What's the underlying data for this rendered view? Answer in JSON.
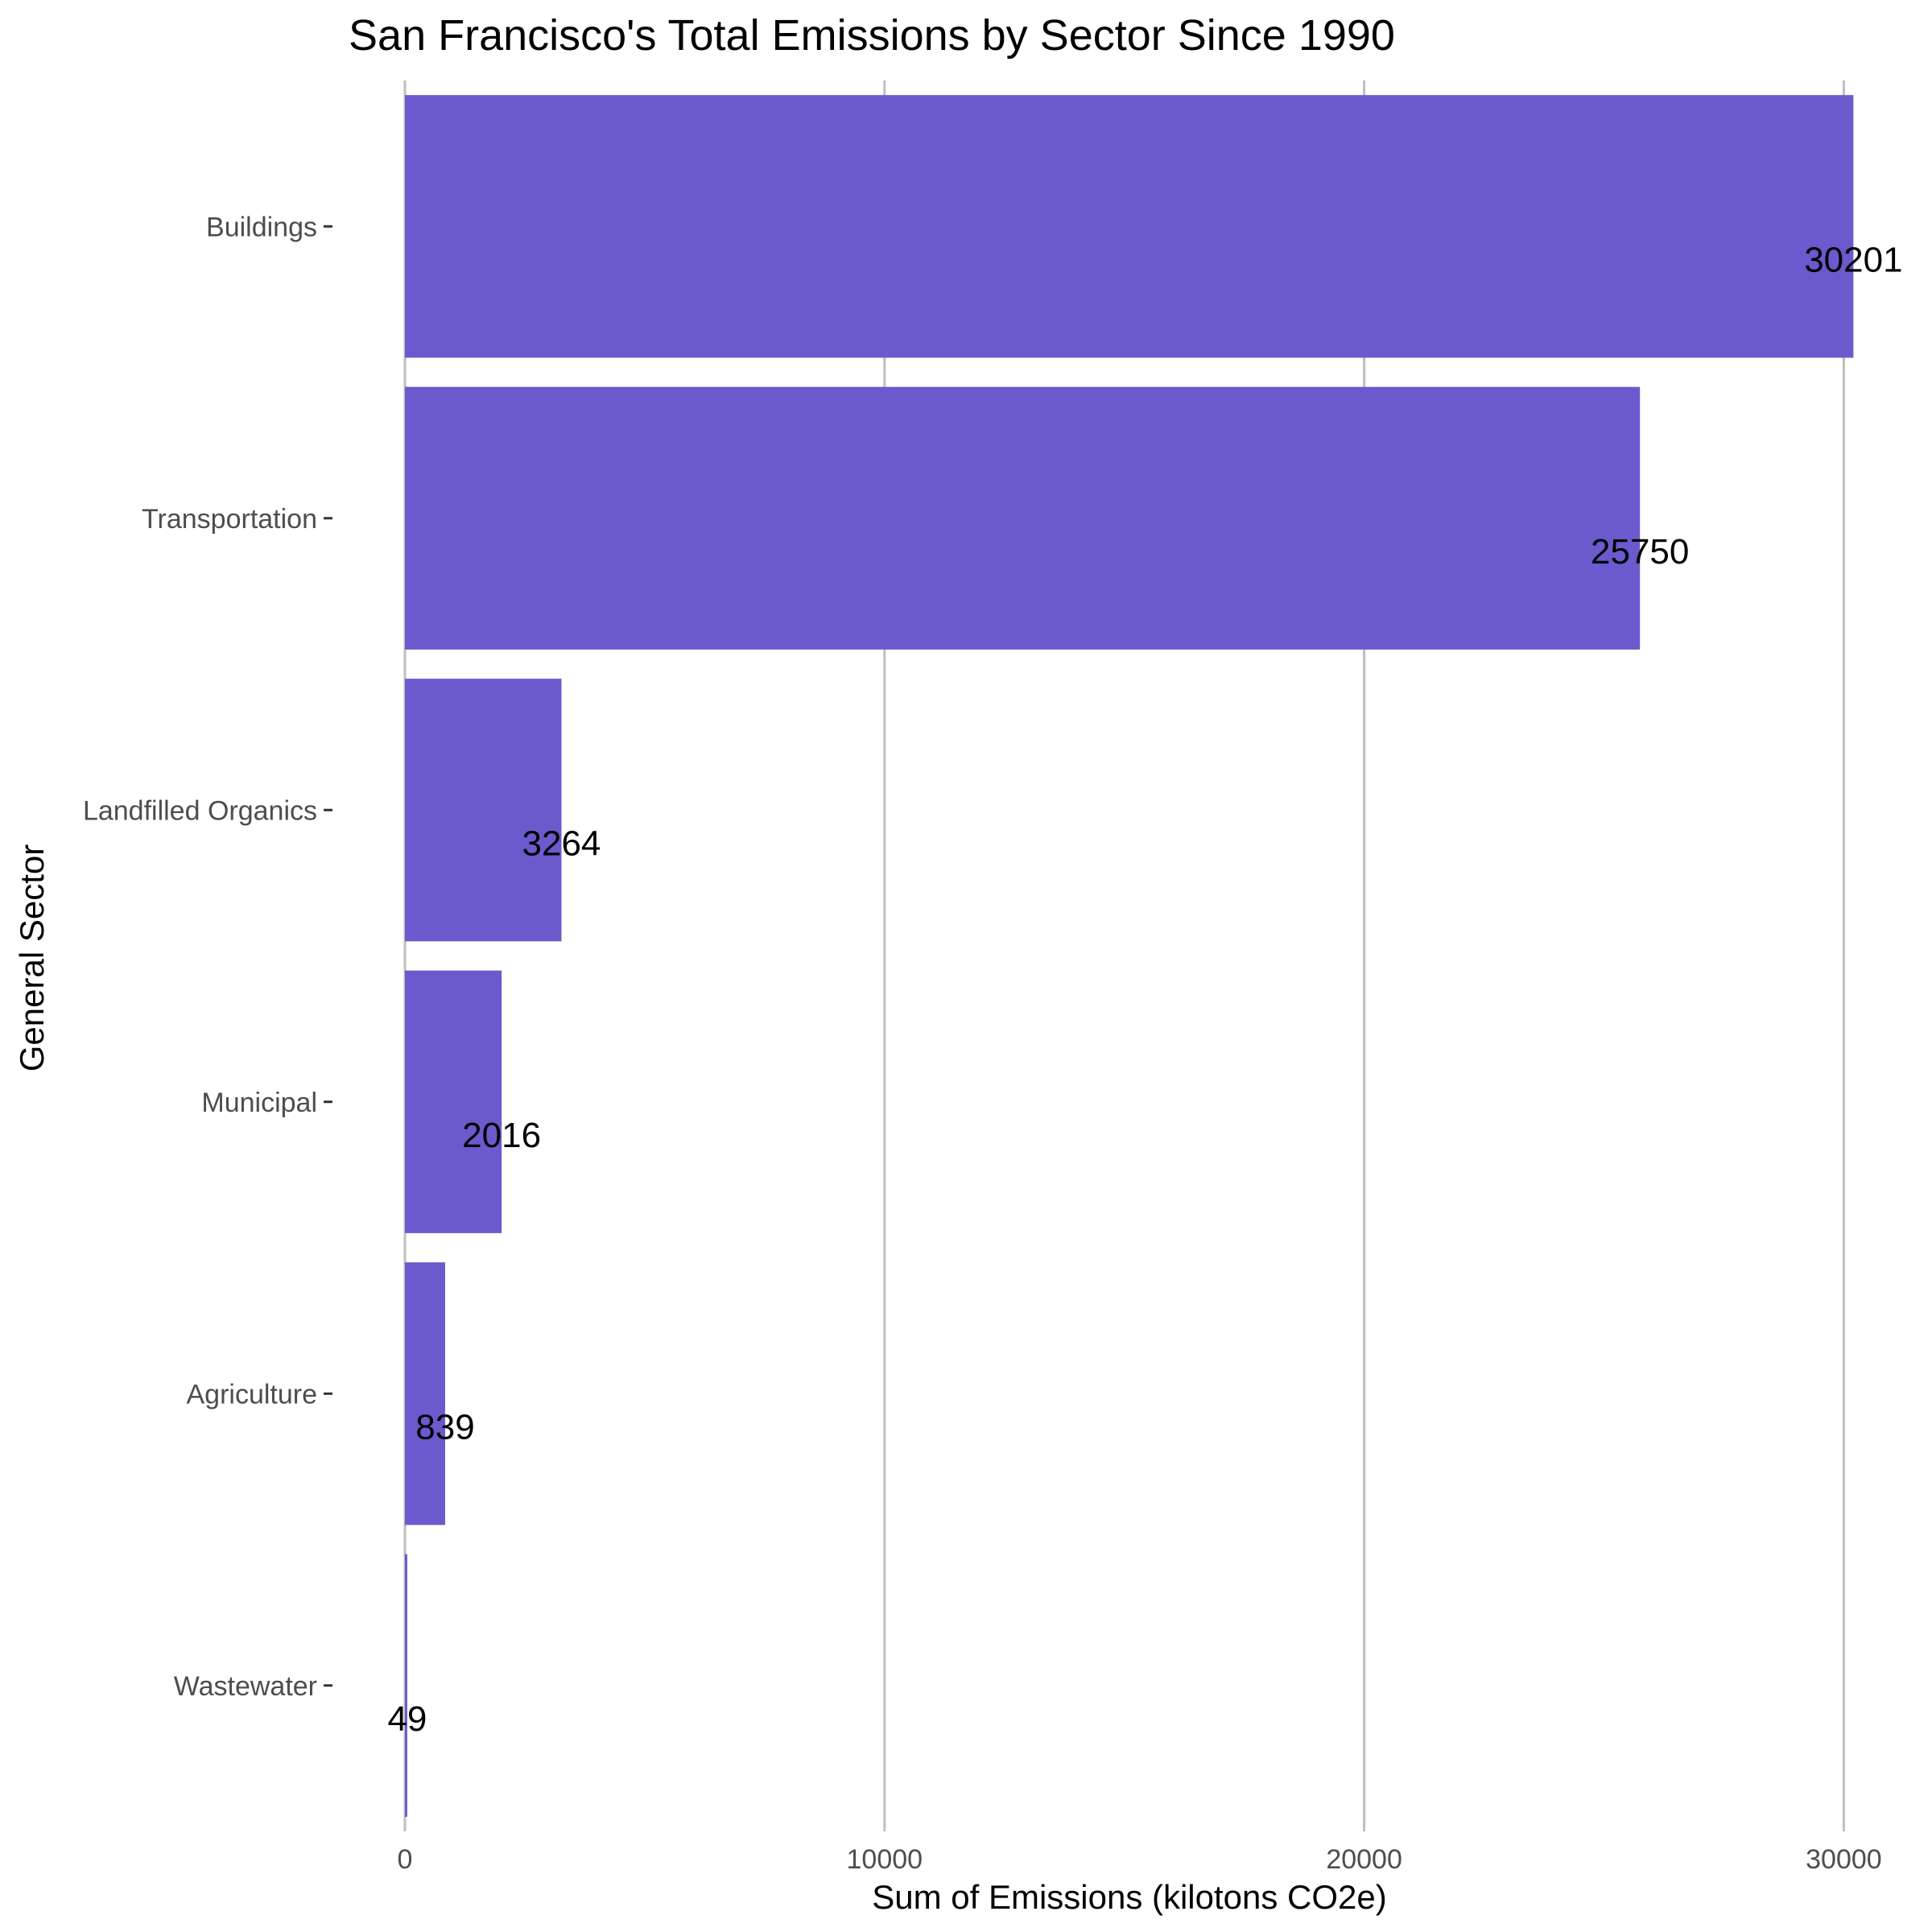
{
  "chart_data": {
    "type": "bar",
    "orientation": "horizontal",
    "title": "San Francisco's Total Emissions by Sector Since 1990",
    "xlabel": "Sum of Emissions (kilotons CO2e)",
    "ylabel": "General Sector",
    "categories": [
      "Buildings",
      "Transportation",
      "Landfilled Organics",
      "Municipal",
      "Agriculture",
      "Wastewater"
    ],
    "values": [
      30201,
      25750,
      3264,
      2016,
      839,
      49
    ],
    "data_labels": [
      "30201",
      "25750",
      "3264",
      "2016",
      "839",
      "49"
    ],
    "xlim": [
      0,
      30201
    ],
    "x_ticks": [
      0,
      10000,
      20000,
      30000
    ],
    "x_tick_labels": [
      "0",
      "10000",
      "20000",
      "30000"
    ],
    "grid": "vertical major gridlines",
    "legend": "none",
    "bar_color": "#6a5acd",
    "gridline_color": "#bebebe",
    "background_color": "#ffffff"
  }
}
